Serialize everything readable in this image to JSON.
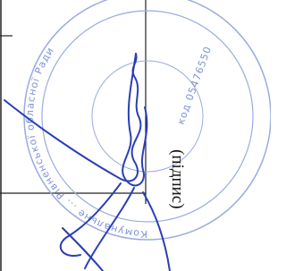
{
  "document": {
    "signature_caption": "(підпис)",
    "stamp": {
      "ring_text": "Комунальне ... Рівненської обласної Ради",
      "code": "код 05476550"
    }
  }
}
